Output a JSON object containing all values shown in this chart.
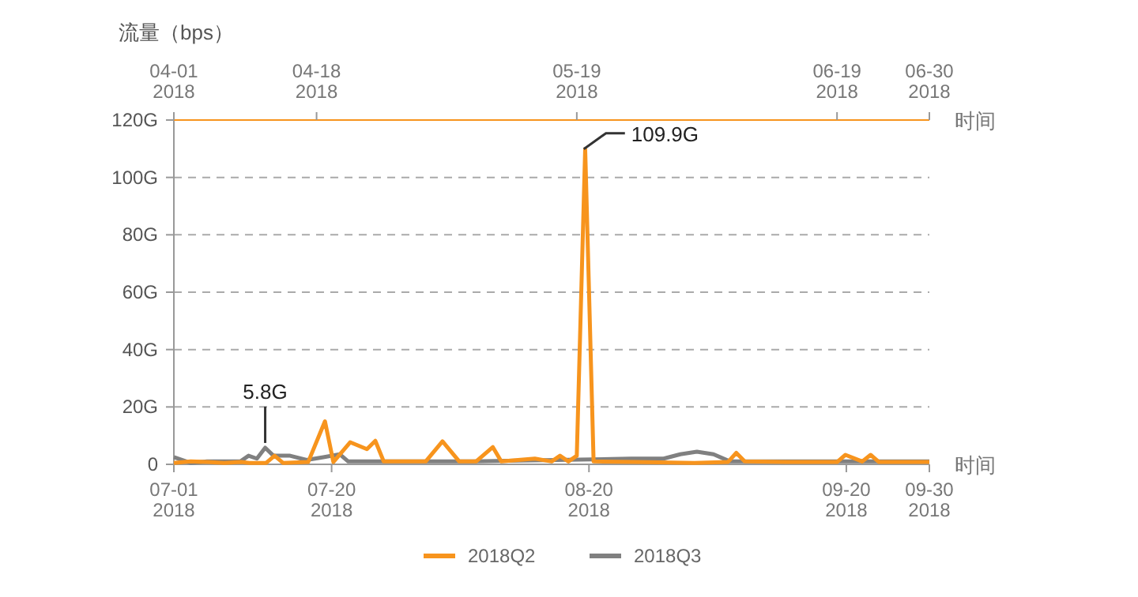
{
  "chart_data": {
    "type": "line",
    "ylabel": "流量（bps）",
    "xlabel": "时间",
    "x2label": "时间",
    "xlim": [
      "2018-07-01",
      "2018-09-30"
    ],
    "x2lim": [
      "2018-04-01",
      "2018-06-30"
    ],
    "xticks": [
      {
        "value": "2018-07-01",
        "label": "07-01\n2018"
      },
      {
        "value": "2018-07-20",
        "label": "07-20\n2018"
      },
      {
        "value": "2018-08-20",
        "label": "08-20\n2018"
      },
      {
        "value": "2018-09-20",
        "label": "09-20\n2018"
      },
      {
        "value": "2018-09-30",
        "label": "09-30\n2018"
      }
    ],
    "x2ticks": [
      {
        "value": "2018-04-01",
        "label": "04-01\n2018"
      },
      {
        "value": "2018-04-18",
        "label": "04-18\n2018"
      },
      {
        "value": "2018-05-19",
        "label": "05-19\n2018"
      },
      {
        "value": "2018-06-19",
        "label": "06-19\n2018"
      },
      {
        "value": "2018-06-30",
        "label": "06-30\n2018"
      }
    ],
    "ylim": [
      0,
      120
    ],
    "yticks": [
      0,
      {
        "value": 20,
        "label": "20G"
      },
      {
        "value": 40,
        "label": "40G"
      },
      {
        "value": 60,
        "label": "60G"
      },
      {
        "value": 80,
        "label": "80G"
      },
      {
        "value": 100,
        "label": "100G"
      },
      {
        "value": 120,
        "label": "120G"
      }
    ],
    "grid": "y",
    "legend": "bottom",
    "marker": "none",
    "line_style": "solid",
    "series": [
      {
        "name": "2018Q2",
        "color": "#f7941d",
        "axis": "x2",
        "x": [
          "2018-04-01",
          "2018-04-03",
          "2018-04-05",
          "2018-04-07",
          "2018-04-09",
          "2018-04-10",
          "2018-04-12",
          "2018-04-13",
          "2018-04-14",
          "2018-04-17",
          "2018-04-19",
          "2018-04-20",
          "2018-04-22",
          "2018-04-24",
          "2018-04-25",
          "2018-04-26",
          "2018-04-28",
          "2018-05-01",
          "2018-05-03",
          "2018-05-05",
          "2018-05-07",
          "2018-05-09",
          "2018-05-10",
          "2018-05-12",
          "2018-05-14",
          "2018-05-16",
          "2018-05-17",
          "2018-05-18",
          "2018-05-19",
          "2018-05-20",
          "2018-05-21",
          "2018-05-26",
          "2018-06-02",
          "2018-06-06",
          "2018-06-07",
          "2018-06-08",
          "2018-06-13",
          "2018-06-19",
          "2018-06-20",
          "2018-06-22",
          "2018-06-23",
          "2018-06-24",
          "2018-06-30"
        ],
        "values": [
          0.5,
          1,
          0.8,
          0.5,
          0.8,
          0.5,
          0.5,
          3,
          0.5,
          0.8,
          15,
          0.8,
          7.7,
          5.3,
          8.2,
          1,
          1,
          1,
          8,
          1,
          1,
          6,
          1,
          1.5,
          2,
          1,
          3,
          1,
          3,
          109.9,
          1,
          0.8,
          0.5,
          0.8,
          4,
          1,
          0.8,
          0.8,
          3.3,
          1,
          3.3,
          0.8,
          0.8
        ]
      },
      {
        "name": "2018Q3",
        "color": "#808080",
        "x": [
          "2018-07-01",
          "2018-07-03",
          "2018-07-05",
          "2018-07-09",
          "2018-07-10",
          "2018-07-11",
          "2018-07-12",
          "2018-07-13",
          "2018-07-15",
          "2018-07-17",
          "2018-07-19",
          "2018-07-21",
          "2018-07-22",
          "2018-07-26",
          "2018-08-06",
          "2018-08-16",
          "2018-08-25",
          "2018-08-29",
          "2018-08-31",
          "2018-09-02",
          "2018-09-04",
          "2018-09-06",
          "2018-09-13",
          "2018-09-21",
          "2018-09-30"
        ],
        "values": [
          2.5,
          0.5,
          1,
          1,
          3,
          2,
          5.8,
          3,
          3,
          1.5,
          2.5,
          3.5,
          1,
          1,
          1,
          1.5,
          2,
          2,
          3.5,
          4.4,
          3.5,
          1,
          1,
          1,
          1
        ]
      }
    ],
    "annotations": [
      {
        "text": "109.9G",
        "x": "2018-08-19",
        "y": 109.9
      },
      {
        "text": "5.8G",
        "x": "2018-07-12",
        "y": 5.8
      }
    ]
  }
}
